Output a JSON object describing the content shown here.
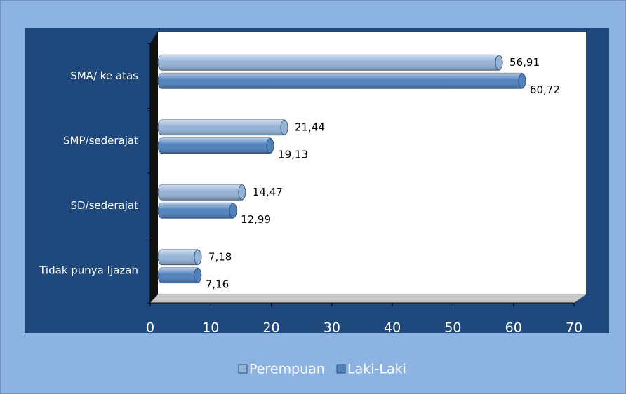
{
  "chart_data": {
    "type": "bar",
    "orientation": "horizontal",
    "categories": [
      "Tidak punya Ijazah",
      "SD/sederajat",
      "SMP/sederajat",
      "SMA/ ke atas"
    ],
    "series": [
      {
        "name": "Perempuan",
        "color": "#95b3d7",
        "values": [
          7.18,
          14.47,
          21.44,
          56.91
        ],
        "value_labels": [
          "7,18",
          "14,47",
          "21,44",
          "56,91"
        ]
      },
      {
        "name": "Laki-Laki",
        "color": "#4f81bd",
        "values": [
          7.16,
          12.99,
          19.13,
          60.72
        ],
        "value_labels": [
          "7,16",
          "12,99",
          "19,13",
          "60,72"
        ]
      }
    ],
    "xlim": [
      0,
      70
    ],
    "xticks": [
      0,
      10,
      20,
      30,
      40,
      50,
      60,
      70
    ],
    "legend": "bottom"
  }
}
